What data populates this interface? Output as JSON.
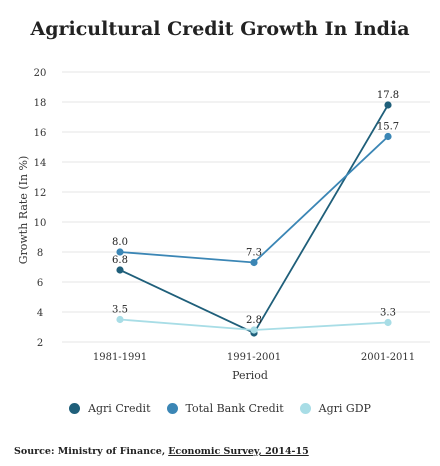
{
  "chart_data": {
    "type": "line",
    "title": "Agricultural Credit Growth In India",
    "xlabel": "Period",
    "ylabel": "Growth Rate (In %)",
    "categories": [
      "1981-1991",
      "1991-2001",
      "2001-2011"
    ],
    "ylim": [
      2,
      20
    ],
    "yticks": [
      2,
      4,
      6,
      8,
      10,
      12,
      14,
      16,
      18,
      20
    ],
    "grid": true,
    "legend_position": "bottom",
    "series": [
      {
        "name": "Agri Credit",
        "values": [
          6.8,
          2.6,
          17.8
        ],
        "labels": [
          "6.8",
          "",
          "17.8"
        ],
        "color": "#1f5f7a"
      },
      {
        "name": "Total Bank Credit",
        "values": [
          8.0,
          7.3,
          15.7
        ],
        "labels": [
          "8.0",
          "7.3",
          "15.7"
        ],
        "color": "#3b86b5"
      },
      {
        "name": "Agri GDP",
        "values": [
          3.5,
          2.8,
          3.3
        ],
        "labels": [
          "3.5",
          "2.8",
          "3.3"
        ],
        "color": "#a8dde6"
      }
    ]
  },
  "source": {
    "prefix": "Source: Ministry of Finance,",
    "link": "Economic Survey, 2014-15"
  }
}
